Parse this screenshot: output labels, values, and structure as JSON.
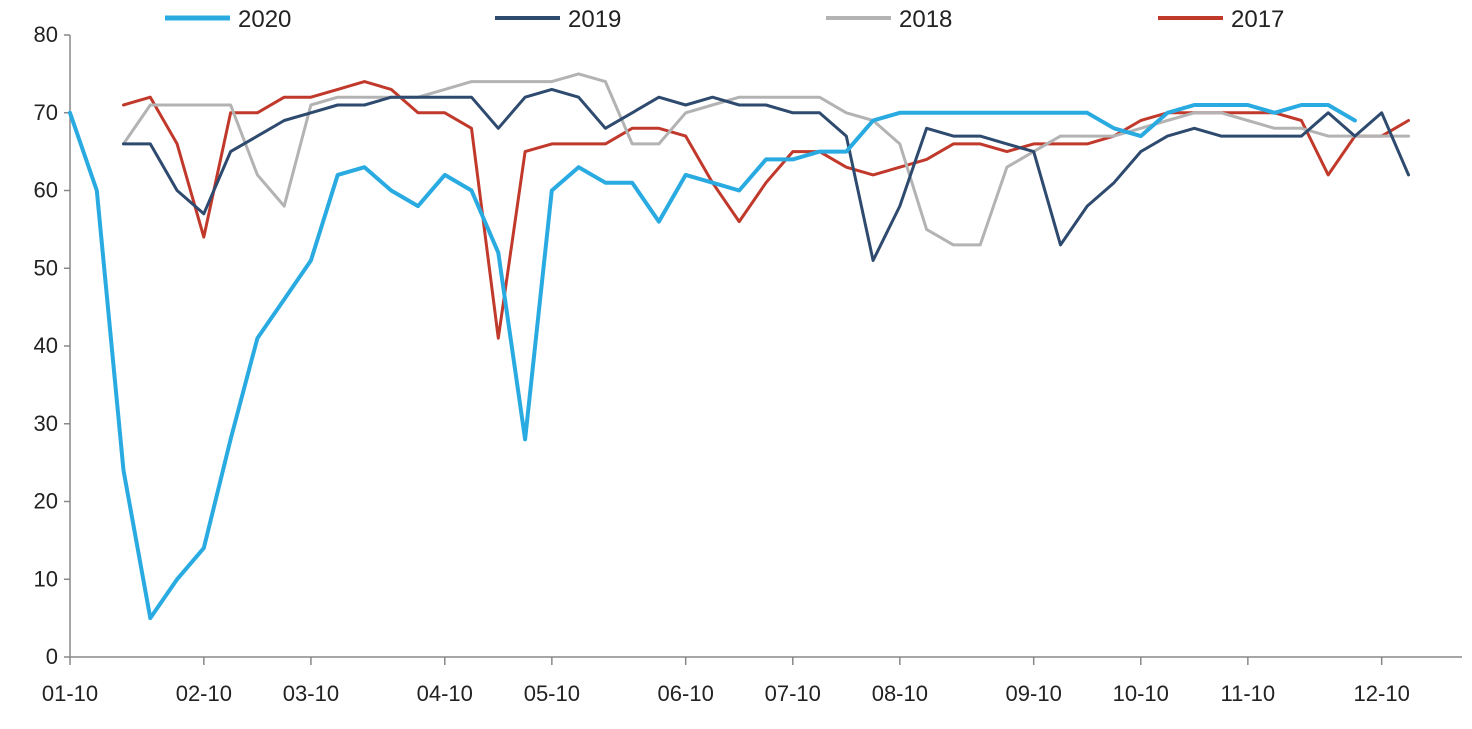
{
  "chart_data": {
    "type": "line",
    "title": "",
    "xlabel": "",
    "ylabel": "",
    "ylim": [
      0,
      80
    ],
    "y_ticks": [
      0,
      10,
      20,
      30,
      40,
      50,
      60,
      70,
      80
    ],
    "x_range": [
      1,
      53
    ],
    "x_unit": "week",
    "x_ticks": [
      {
        "label": "01-10",
        "week": 1
      },
      {
        "label": "02-10",
        "week": 6
      },
      {
        "label": "03-10",
        "week": 10
      },
      {
        "label": "04-10",
        "week": 15
      },
      {
        "label": "05-10",
        "week": 19
      },
      {
        "label": "06-10",
        "week": 24
      },
      {
        "label": "07-10",
        "week": 28
      },
      {
        "label": "08-10",
        "week": 32
      },
      {
        "label": "09-10",
        "week": 37
      },
      {
        "label": "10-10",
        "week": 41
      },
      {
        "label": "11-10",
        "week": 45
      },
      {
        "label": "12-10",
        "week": 50
      }
    ],
    "legend_position": "top",
    "grid": false,
    "series": [
      {
        "name": "2020",
        "color": "#29abe2",
        "stroke_width": 4,
        "points": [
          [
            1,
            70
          ],
          [
            2,
            60
          ],
          [
            3,
            24
          ],
          [
            4,
            5
          ],
          [
            5,
            10
          ],
          [
            6,
            14
          ],
          [
            7,
            28
          ],
          [
            8,
            41
          ],
          [
            9,
            46
          ],
          [
            10,
            51
          ],
          [
            11,
            62
          ],
          [
            12,
            63
          ],
          [
            13,
            60
          ],
          [
            14,
            58
          ],
          [
            15,
            62
          ],
          [
            16,
            60
          ],
          [
            17,
            52
          ],
          [
            18,
            28
          ],
          [
            19,
            60
          ],
          [
            20,
            63
          ],
          [
            21,
            61
          ],
          [
            22,
            61
          ],
          [
            23,
            56
          ],
          [
            24,
            62
          ],
          [
            25,
            61
          ],
          [
            26,
            60
          ],
          [
            27,
            64
          ],
          [
            28,
            64
          ],
          [
            29,
            65
          ],
          [
            30,
            65
          ],
          [
            31,
            69
          ],
          [
            32,
            70
          ],
          [
            33,
            70
          ],
          [
            34,
            70
          ],
          [
            35,
            70
          ],
          [
            36,
            70
          ],
          [
            37,
            70
          ],
          [
            38,
            70
          ],
          [
            39,
            70
          ],
          [
            40,
            68
          ],
          [
            41,
            67
          ],
          [
            42,
            70
          ],
          [
            43,
            71
          ],
          [
            44,
            71
          ],
          [
            45,
            71
          ],
          [
            46,
            70
          ],
          [
            47,
            71
          ],
          [
            48,
            71
          ],
          [
            49,
            69
          ]
        ]
      },
      {
        "name": "2019",
        "color": "#2e4a6e",
        "stroke_width": 3,
        "points": [
          [
            3,
            66
          ],
          [
            4,
            66
          ],
          [
            5,
            60
          ],
          [
            6,
            57
          ],
          [
            7,
            65
          ],
          [
            8,
            67
          ],
          [
            9,
            69
          ],
          [
            10,
            70
          ],
          [
            11,
            71
          ],
          [
            12,
            71
          ],
          [
            13,
            72
          ],
          [
            14,
            72
          ],
          [
            15,
            72
          ],
          [
            16,
            72
          ],
          [
            17,
            68
          ],
          [
            18,
            72
          ],
          [
            19,
            73
          ],
          [
            20,
            72
          ],
          [
            21,
            68
          ],
          [
            22,
            70
          ],
          [
            23,
            72
          ],
          [
            24,
            71
          ],
          [
            25,
            72
          ],
          [
            26,
            71
          ],
          [
            27,
            71
          ],
          [
            28,
            70
          ],
          [
            29,
            70
          ],
          [
            30,
            67
          ],
          [
            31,
            51
          ],
          [
            32,
            58
          ],
          [
            33,
            68
          ],
          [
            34,
            67
          ],
          [
            35,
            67
          ],
          [
            36,
            66
          ],
          [
            37,
            65
          ],
          [
            38,
            53
          ],
          [
            39,
            58
          ],
          [
            40,
            61
          ],
          [
            41,
            65
          ],
          [
            42,
            67
          ],
          [
            43,
            68
          ],
          [
            44,
            67
          ],
          [
            45,
            67
          ],
          [
            46,
            67
          ],
          [
            47,
            67
          ],
          [
            48,
            70
          ],
          [
            49,
            67
          ],
          [
            50,
            70
          ],
          [
            51,
            62
          ]
        ]
      },
      {
        "name": "2018",
        "color": "#b3b3b3",
        "stroke_width": 3,
        "points": [
          [
            3,
            66
          ],
          [
            4,
            71
          ],
          [
            5,
            71
          ],
          [
            6,
            71
          ],
          [
            7,
            71
          ],
          [
            8,
            62
          ],
          [
            9,
            58
          ],
          [
            10,
            71
          ],
          [
            11,
            72
          ],
          [
            12,
            72
          ],
          [
            13,
            72
          ],
          [
            14,
            72
          ],
          [
            15,
            73
          ],
          [
            16,
            74
          ],
          [
            17,
            74
          ],
          [
            18,
            74
          ],
          [
            19,
            74
          ],
          [
            20,
            75
          ],
          [
            21,
            74
          ],
          [
            22,
            66
          ],
          [
            23,
            66
          ],
          [
            24,
            70
          ],
          [
            25,
            71
          ],
          [
            26,
            72
          ],
          [
            27,
            72
          ],
          [
            28,
            72
          ],
          [
            29,
            72
          ],
          [
            30,
            70
          ],
          [
            31,
            69
          ],
          [
            32,
            66
          ],
          [
            33,
            55
          ],
          [
            34,
            53
          ],
          [
            35,
            53
          ],
          [
            36,
            63
          ],
          [
            37,
            65
          ],
          [
            38,
            67
          ],
          [
            39,
            67
          ],
          [
            40,
            67
          ],
          [
            41,
            68
          ],
          [
            42,
            69
          ],
          [
            43,
            70
          ],
          [
            44,
            70
          ],
          [
            45,
            69
          ],
          [
            46,
            68
          ],
          [
            47,
            68
          ],
          [
            48,
            67
          ],
          [
            49,
            67
          ],
          [
            50,
            67
          ],
          [
            51,
            67
          ]
        ]
      },
      {
        "name": "2017",
        "color": "#c0392b",
        "stroke_width": 3,
        "points": [
          [
            3,
            71
          ],
          [
            4,
            72
          ],
          [
            5,
            66
          ],
          [
            6,
            54
          ],
          [
            7,
            70
          ],
          [
            8,
            70
          ],
          [
            9,
            72
          ],
          [
            10,
            72
          ],
          [
            11,
            73
          ],
          [
            12,
            74
          ],
          [
            13,
            73
          ],
          [
            14,
            70
          ],
          [
            15,
            70
          ],
          [
            16,
            68
          ],
          [
            17,
            41
          ],
          [
            18,
            65
          ],
          [
            19,
            66
          ],
          [
            20,
            66
          ],
          [
            21,
            66
          ],
          [
            22,
            68
          ],
          [
            23,
            68
          ],
          [
            24,
            67
          ],
          [
            25,
            61
          ],
          [
            26,
            56
          ],
          [
            27,
            61
          ],
          [
            28,
            65
          ],
          [
            29,
            65
          ],
          [
            30,
            63
          ],
          [
            31,
            62
          ],
          [
            32,
            63
          ],
          [
            33,
            64
          ],
          [
            34,
            66
          ],
          [
            35,
            66
          ],
          [
            36,
            65
          ],
          [
            37,
            66
          ],
          [
            38,
            66
          ],
          [
            39,
            66
          ],
          [
            40,
            67
          ],
          [
            41,
            69
          ],
          [
            42,
            70
          ],
          [
            43,
            70
          ],
          [
            44,
            70
          ],
          [
            45,
            70
          ],
          [
            46,
            70
          ],
          [
            47,
            69
          ],
          [
            48,
            62
          ],
          [
            49,
            67
          ],
          [
            50,
            67
          ],
          [
            51,
            69
          ]
        ]
      }
    ]
  }
}
